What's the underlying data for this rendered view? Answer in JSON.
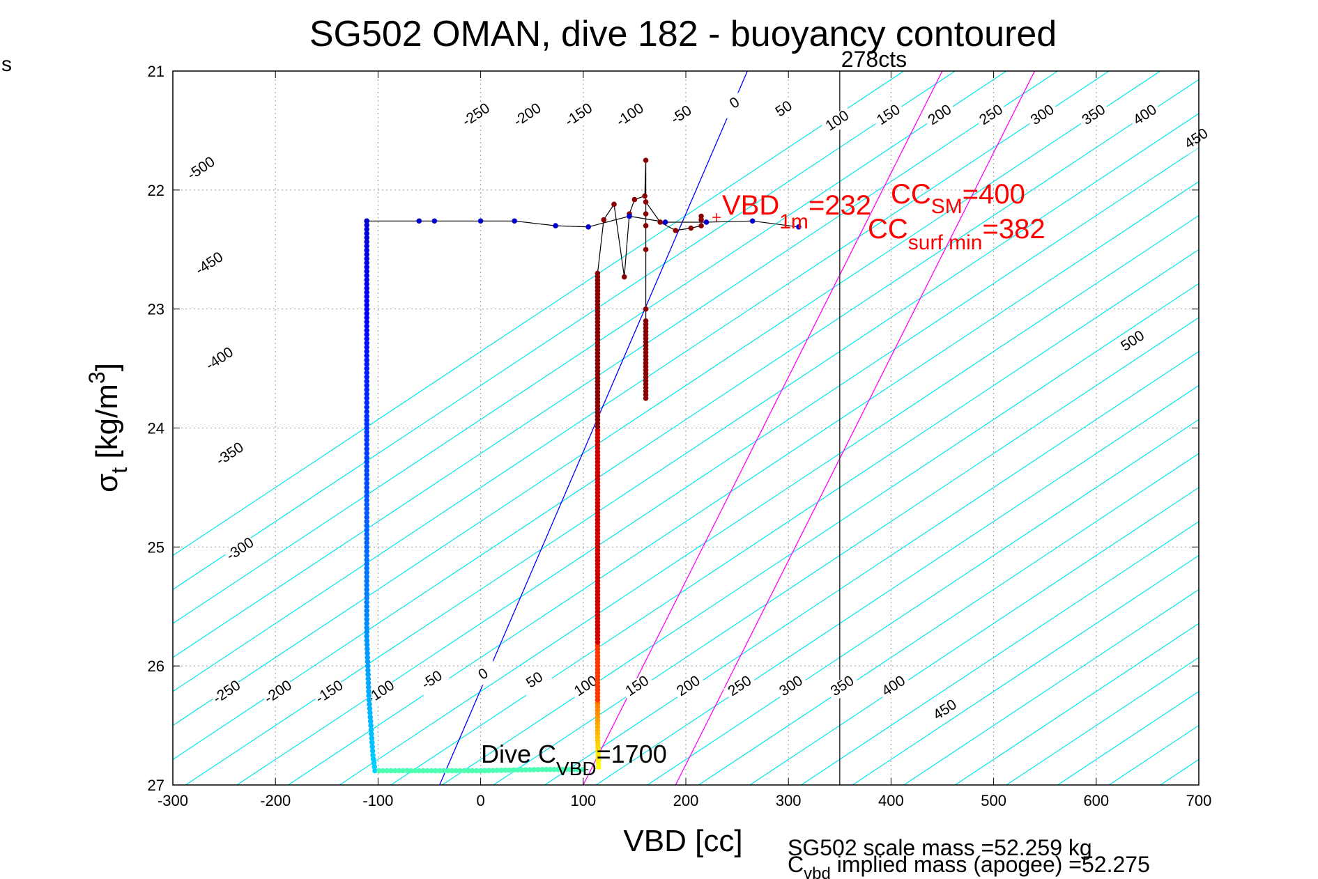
{
  "chart_data": {
    "type": "scatter",
    "title": "SG502 OMAN, dive 182 - buoyancy contoured",
    "xlabel": "VBD [cc]",
    "ylabel_main": "σ",
    "ylabel_sub": "t",
    "ylabel_rest": " [kg/m",
    "ylabel_sup": "3",
    "ylabel_close": "]",
    "xlim": [
      -300,
      700
    ],
    "ylim": [
      21,
      27
    ],
    "y_reversed": true,
    "grid": true,
    "xticks": [
      -300,
      -200,
      -100,
      0,
      100,
      200,
      300,
      400,
      500,
      600,
      700
    ],
    "xtick_labels": [
      "-300",
      "-200",
      "-100",
      "0",
      "100",
      "200",
      "300",
      "400",
      "500",
      "600",
      "700"
    ],
    "yticks": [
      21,
      22,
      23,
      24,
      25,
      26,
      27
    ],
    "ytick_labels": [
      "21",
      "22",
      "23",
      "24",
      "25",
      "26",
      "27"
    ],
    "corner_label": "s",
    "buoyancy_contours": {
      "slope_vbd_per_sigma": 175,
      "intercept_at_sigma": 26.5,
      "levels": [
        -550,
        -500,
        -450,
        -400,
        -350,
        -300,
        -250,
        -200,
        -150,
        -100,
        -50,
        0,
        50,
        100,
        150,
        200,
        250,
        300,
        350,
        400,
        450,
        500,
        550,
        600,
        650,
        700,
        750
      ],
      "top_labels": [
        {
          "text": "-500",
          "vbd": -270,
          "sigma": 21.85
        },
        {
          "text": "-450",
          "vbd": -262,
          "sigma": 22.65
        },
        {
          "text": "-400",
          "vbd": -252,
          "sigma": 23.45
        },
        {
          "text": "-350",
          "vbd": -242,
          "sigma": 24.25
        },
        {
          "text": "-300",
          "vbd": -232,
          "sigma": 25.05
        },
        {
          "text": "-250",
          "vbd": -2,
          "sigma": 21.4
        },
        {
          "text": "-200",
          "vbd": 48,
          "sigma": 21.4
        },
        {
          "text": "-150",
          "vbd": 98,
          "sigma": 21.4
        },
        {
          "text": "-100",
          "vbd": 148,
          "sigma": 21.4
        },
        {
          "text": "-50",
          "vbd": 198,
          "sigma": 21.4
        },
        {
          "text": "0",
          "vbd": 250,
          "sigma": 21.3
        },
        {
          "text": "50",
          "vbd": 298,
          "sigma": 21.35
        },
        {
          "text": "100",
          "vbd": 350,
          "sigma": 21.45
        },
        {
          "text": "150",
          "vbd": 400,
          "sigma": 21.4
        },
        {
          "text": "200",
          "vbd": 450,
          "sigma": 21.4
        },
        {
          "text": "250",
          "vbd": 500,
          "sigma": 21.4
        },
        {
          "text": "300",
          "vbd": 550,
          "sigma": 21.4
        },
        {
          "text": "350",
          "vbd": 600,
          "sigma": 21.4
        },
        {
          "text": "400",
          "vbd": 650,
          "sigma": 21.4
        },
        {
          "text": "450",
          "vbd": 700,
          "sigma": 21.6
        },
        {
          "text": "500",
          "vbd": 638,
          "sigma": 23.3
        }
      ],
      "bottom_labels": [
        {
          "text": "-250",
          "vbd": -245,
          "sigma": 26.25
        },
        {
          "text": "-200",
          "vbd": -195,
          "sigma": 26.25
        },
        {
          "text": "-150",
          "vbd": -145,
          "sigma": 26.25
        },
        {
          "text": "-100",
          "vbd": -95,
          "sigma": 26.25
        },
        {
          "text": "-50",
          "vbd": -45,
          "sigma": 26.15
        },
        {
          "text": "0",
          "vbd": 5,
          "sigma": 26.1
        },
        {
          "text": "50",
          "vbd": 55,
          "sigma": 26.15
        },
        {
          "text": "100",
          "vbd": 105,
          "sigma": 26.2
        },
        {
          "text": "150",
          "vbd": 155,
          "sigma": 26.2
        },
        {
          "text": "200",
          "vbd": 205,
          "sigma": 26.2
        },
        {
          "text": "250",
          "vbd": 255,
          "sigma": 26.2
        },
        {
          "text": "300",
          "vbd": 305,
          "sigma": 26.2
        },
        {
          "text": "350",
          "vbd": 355,
          "sigma": 26.2
        },
        {
          "text": "400",
          "vbd": 405,
          "sigma": 26.2
        },
        {
          "text": "450",
          "vbd": 455,
          "sigma": 26.4
        }
      ]
    },
    "reference_lines": [
      {
        "name": "blue",
        "color": "#0000ff",
        "vbd_at_27": -40,
        "vbd_at_21": 260
      },
      {
        "name": "magenta-1",
        "color": "#ff00ff",
        "vbd_at_27": 100,
        "vbd_at_21": 450
      },
      {
        "name": "magenta-2",
        "color": "#ff00ff",
        "vbd_at_27": 190,
        "vbd_at_21": 540
      }
    ],
    "vertical_line": {
      "vbd": 350,
      "label": "278cts"
    },
    "dive_path_descent": [
      [
        -111,
        22.26
      ],
      [
        -111,
        22.4
      ],
      [
        -111,
        23.25
      ],
      [
        -111,
        23.75
      ],
      [
        -111,
        23.9
      ],
      [
        -111,
        24.1
      ],
      [
        -111,
        24.25
      ],
      [
        -111,
        24.5
      ],
      [
        -111,
        24.75
      ],
      [
        -111,
        25.0
      ],
      [
        -111,
        25.25
      ],
      [
        -111,
        25.5
      ],
      [
        -111,
        25.75
      ],
      [
        -110,
        26.0
      ],
      [
        -109,
        26.25
      ],
      [
        -107,
        26.5
      ],
      [
        -105,
        26.75
      ],
      [
        -103,
        26.88
      ],
      [
        -60,
        26.88
      ],
      [
        0,
        26.88
      ],
      [
        60,
        26.87
      ],
      [
        95,
        26.87
      ],
      [
        105,
        26.87
      ]
    ],
    "dive_path_ascent": [
      [
        115,
        26.85
      ],
      [
        114,
        26.6
      ],
      [
        114,
        26.2
      ],
      [
        114,
        25.8
      ],
      [
        114,
        25.4
      ],
      [
        114,
        25.0
      ],
      [
        114,
        24.6
      ],
      [
        114,
        24.2
      ],
      [
        114,
        23.9
      ],
      [
        114,
        23.55
      ],
      [
        114,
        23.4
      ],
      [
        114,
        22.7
      ],
      [
        120,
        22.25
      ],
      [
        130,
        22.12
      ],
      [
        140,
        22.73
      ],
      [
        145,
        22.2
      ],
      [
        150,
        22.08
      ],
      [
        160,
        22.05
      ],
      [
        161,
        21.75
      ],
      [
        161,
        23.75
      ],
      [
        161,
        23.1
      ],
      [
        161,
        23.0
      ],
      [
        161,
        22.5
      ],
      [
        161,
        22.3
      ],
      [
        161,
        22.2
      ],
      [
        161,
        22.1
      ],
      [
        175,
        22.27
      ],
      [
        190,
        22.34
      ],
      [
        205,
        22.32
      ],
      [
        215,
        22.3
      ],
      [
        215,
        22.25
      ],
      [
        215,
        22.22
      ]
    ],
    "surface_path": [
      [
        -111,
        22.26
      ],
      [
        -60,
        22.26
      ],
      [
        -45,
        22.26
      ],
      [
        0,
        22.26
      ],
      [
        33,
        22.26
      ],
      [
        73,
        22.3
      ],
      [
        105,
        22.31
      ],
      [
        145,
        22.22
      ],
      [
        180,
        22.27
      ],
      [
        220,
        22.27
      ],
      [
        265,
        22.26
      ],
      [
        310,
        22.31
      ]
    ],
    "annotations": {
      "vbd1m_main": "VBD",
      "vbd1m_sub": "1m",
      "vbd1m_value": "=232",
      "ccsm_main": "CC",
      "ccsm_sub": "SM",
      "ccsm_value": "=400",
      "ccsurf_main": "CC",
      "ccsurf_sub": "surf min",
      "ccsurf_value": "=382",
      "dive_cvbd_main": "Dive C",
      "dive_cvbd_sub": "VBD",
      "dive_cvbd_value": "=1700",
      "footer_line1": "SG502 scale mass =52.259 kg",
      "footer_line2_main": "C",
      "footer_line2_sub": "vbd",
      "footer_line2_rest": " implied mass (apogee) =52.275"
    }
  }
}
